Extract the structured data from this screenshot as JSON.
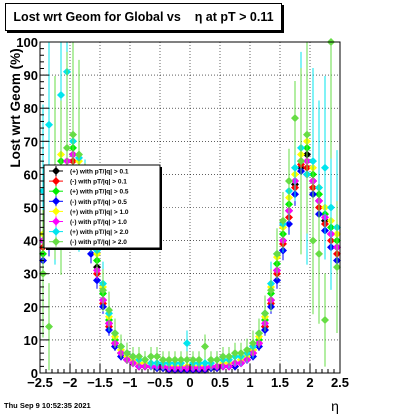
{
  "chart_data": {
    "type": "scatter",
    "title": "Lost wrt Geom for Global vs    η at pT > 0.11",
    "xlabel": "η",
    "ylabel": "Lost wrt Geom (%)",
    "xlim": [
      -2.5,
      2.5
    ],
    "ylim": [
      0,
      100
    ],
    "x_ticks": [
      -2.5,
      -2,
      -1.5,
      -1,
      -0.5,
      0,
      0.5,
      1,
      1.5,
      2,
      2.5
    ],
    "x_tick_labels": [
      "−2.5",
      "−2",
      "−1.5",
      "−1",
      "−0.5",
      "0",
      "0.5",
      "1",
      "1.5",
      "2",
      "2.5"
    ],
    "y_ticks": [
      0,
      10,
      20,
      30,
      40,
      50,
      60,
      70,
      80,
      90,
      100
    ],
    "y_tick_labels": [
      "0",
      "10",
      "20",
      "30",
      "40",
      "50",
      "60",
      "70",
      "80",
      "90",
      "100"
    ],
    "grid": true,
    "legend_placement": "center-left",
    "series": [
      {
        "name": "(+) with pT/|q| > 0.1",
        "color": "#000000",
        "x": [
          -2.45,
          -2.35,
          -2.25,
          -2.15,
          -2.05,
          -1.95,
          -1.85,
          -1.75,
          -1.65,
          -1.55,
          -1.45,
          -1.35,
          -1.25,
          -1.15,
          -1.05,
          -0.95,
          -0.85,
          -0.75,
          -0.65,
          -0.55,
          -0.45,
          -0.35,
          -0.25,
          -0.15,
          -0.05,
          0.05,
          0.15,
          0.25,
          0.35,
          0.45,
          0.55,
          0.65,
          0.75,
          0.85,
          0.95,
          1.05,
          1.15,
          1.25,
          1.35,
          1.45,
          1.55,
          1.65,
          1.75,
          1.85,
          1.95,
          2.05,
          2.15,
          2.25,
          2.35,
          2.45
        ],
        "y": [
          40,
          48,
          55,
          62,
          58,
          66,
          60,
          48,
          40,
          32,
          22,
          15,
          9,
          6,
          4,
          3,
          2,
          2,
          2,
          1.5,
          1.5,
          1,
          1,
          1,
          1,
          1,
          1,
          1,
          1.5,
          1.5,
          2,
          2,
          2,
          3,
          4,
          6,
          9,
          14,
          22,
          31,
          40,
          49,
          57,
          62,
          66,
          58,
          52,
          46,
          42,
          38
        ]
      },
      {
        "name": "(-) with pT/|q| > 0.1",
        "color": "#ff0000",
        "x": [
          -2.45,
          -2.35,
          -2.25,
          -2.15,
          -2.05,
          -1.95,
          -1.85,
          -1.75,
          -1.65,
          -1.55,
          -1.45,
          -1.35,
          -1.25,
          -1.15,
          -1.05,
          -0.95,
          -0.85,
          -0.75,
          -0.65,
          -0.55,
          -0.45,
          -0.35,
          -0.25,
          -0.15,
          -0.05,
          0.05,
          0.15,
          0.25,
          0.35,
          0.45,
          0.55,
          0.65,
          0.75,
          0.85,
          0.95,
          1.05,
          1.15,
          1.25,
          1.35,
          1.45,
          1.55,
          1.65,
          1.75,
          1.85,
          1.95,
          2.05,
          2.15,
          2.25,
          2.35,
          2.45
        ],
        "y": [
          38,
          46,
          52,
          60,
          62,
          64,
          58,
          46,
          38,
          30,
          21,
          14,
          9,
          6,
          4,
          3,
          2,
          2,
          2,
          1.5,
          1.5,
          1,
          1,
          1,
          1,
          1,
          1,
          1,
          1.5,
          1.5,
          2,
          2,
          2,
          3,
          4,
          6,
          9,
          14,
          21,
          30,
          39,
          47,
          56,
          63,
          62,
          56,
          50,
          45,
          40,
          36
        ]
      },
      {
        "name": "(+) with pT/|q| > 0.5",
        "color": "#00ee00",
        "x": [
          -2.45,
          -2.35,
          -2.25,
          -2.15,
          -2.05,
          -1.95,
          -1.85,
          -1.75,
          -1.65,
          -1.55,
          -1.45,
          -1.35,
          -1.25,
          -1.15,
          -1.05,
          -0.95,
          -0.85,
          -0.75,
          -0.65,
          -0.55,
          -0.45,
          -0.35,
          -0.25,
          -0.15,
          -0.05,
          0.05,
          0.15,
          0.25,
          0.35,
          0.45,
          0.55,
          0.65,
          0.75,
          0.85,
          0.95,
          1.05,
          1.15,
          1.25,
          1.35,
          1.45,
          1.55,
          1.65,
          1.75,
          1.85,
          1.95,
          2.05,
          2.15,
          2.25,
          2.35,
          2.45
        ],
        "y": [
          36,
          50,
          58,
          64,
          56,
          68,
          62,
          50,
          42,
          34,
          24,
          16,
          10,
          6,
          4,
          3,
          3,
          2,
          2,
          2,
          2,
          1.5,
          1.5,
          1.5,
          1.5,
          1.5,
          1.5,
          1.5,
          2,
          2,
          2,
          3,
          3,
          4,
          5,
          7,
          10,
          16,
          24,
          33,
          42,
          51,
          58,
          64,
          68,
          60,
          54,
          48,
          44,
          40
        ]
      },
      {
        "name": "(-) with pT/|q| > 0.5",
        "color": "#0000ff",
        "x": [
          -2.45,
          -2.35,
          -2.25,
          -2.15,
          -2.05,
          -1.95,
          -1.85,
          -1.75,
          -1.65,
          -1.55,
          -1.45,
          -1.35,
          -1.25,
          -1.15,
          -1.05,
          -0.95,
          -0.85,
          -0.75,
          -0.65,
          -0.55,
          -0.45,
          -0.35,
          -0.25,
          -0.15,
          -0.05,
          0.05,
          0.15,
          0.25,
          0.35,
          0.45,
          0.55,
          0.65,
          0.75,
          0.85,
          0.95,
          1.05,
          1.15,
          1.25,
          1.35,
          1.45,
          1.55,
          1.65,
          1.75,
          1.85,
          1.95,
          2.05,
          2.15,
          2.25,
          2.35,
          2.45
        ],
        "y": [
          34,
          44,
          50,
          58,
          60,
          62,
          56,
          44,
          36,
          28,
          20,
          13,
          8,
          5,
          4,
          3,
          2,
          2,
          2,
          1.5,
          1.5,
          1,
          1,
          1,
          1,
          1,
          1,
          1,
          1.5,
          1.5,
          2,
          2,
          2,
          3,
          4,
          5,
          8,
          13,
          20,
          28,
          37,
          45,
          54,
          61,
          60,
          54,
          48,
          43,
          38,
          34
        ]
      },
      {
        "name": "(+) with pT/|q| > 1.0",
        "color": "#ffff00",
        "x": [
          -2.45,
          -2.35,
          -2.25,
          -2.15,
          -2.05,
          -1.95,
          -1.85,
          -1.75,
          -1.65,
          -1.55,
          -1.45,
          -1.35,
          -1.25,
          -1.15,
          -1.05,
          -0.95,
          -0.85,
          -0.75,
          -0.65,
          -0.55,
          -0.45,
          -0.35,
          -0.25,
          -0.15,
          -0.05,
          0.05,
          0.15,
          0.25,
          0.35,
          0.45,
          0.55,
          0.65,
          0.75,
          0.85,
          0.95,
          1.05,
          1.15,
          1.25,
          1.35,
          1.45,
          1.55,
          1.65,
          1.75,
          1.85,
          1.95,
          2.05,
          2.15,
          2.25,
          2.35,
          2.45
        ],
        "y": [
          42,
          52,
          60,
          66,
          54,
          70,
          64,
          52,
          44,
          36,
          26,
          17,
          11,
          7,
          5,
          4,
          3,
          3,
          2,
          2,
          2,
          2,
          2,
          2,
          2,
          2,
          2,
          2,
          2,
          2,
          3,
          3,
          3,
          4,
          5,
          7,
          11,
          17,
          26,
          35,
          44,
          53,
          60,
          66,
          70,
          62,
          56,
          50,
          46,
          42
        ]
      },
      {
        "name": "(-) with pT/|q| > 1.0",
        "color": "#ff00ff",
        "x": [
          -2.45,
          -2.35,
          -2.25,
          -2.15,
          -2.05,
          -1.95,
          -1.85,
          -1.75,
          -1.65,
          -1.55,
          -1.45,
          -1.35,
          -1.25,
          -1.15,
          -1.05,
          -0.95,
          -0.85,
          -0.75,
          -0.65,
          -0.55,
          -0.45,
          -0.35,
          -0.25,
          -0.15,
          -0.05,
          0.05,
          0.15,
          0.25,
          0.35,
          0.45,
          0.55,
          0.65,
          0.75,
          0.85,
          0.95,
          1.05,
          1.15,
          1.25,
          1.35,
          1.45,
          1.55,
          1.65,
          1.75,
          1.85,
          1.95,
          2.05,
          2.15,
          2.25,
          2.35,
          2.45
        ],
        "y": [
          40,
          48,
          54,
          62,
          64,
          66,
          60,
          48,
          40,
          31,
          22,
          15,
          9,
          6,
          4,
          3,
          2,
          2,
          2,
          2,
          2,
          1.5,
          1.5,
          1.5,
          1.5,
          1.5,
          1.5,
          1.5,
          2,
          2,
          2,
          2,
          3,
          3,
          4,
          6,
          9,
          15,
          22,
          31,
          40,
          49,
          58,
          64,
          64,
          58,
          52,
          47,
          42,
          38
        ]
      },
      {
        "name": "(+) with pT/|q| > 2.0",
        "color": "#00e5ee",
        "x": [
          -2.45,
          -2.35,
          -2.25,
          -2.15,
          -2.05,
          -1.95,
          -1.85,
          -1.75,
          -1.65,
          -1.55,
          -1.45,
          -1.35,
          -1.25,
          -1.15,
          -1.05,
          -0.95,
          -0.85,
          -0.75,
          -0.65,
          -0.55,
          -0.45,
          -0.35,
          -0.25,
          -0.15,
          -0.05,
          0.05,
          0.15,
          0.25,
          0.35,
          0.45,
          0.55,
          0.65,
          0.75,
          0.85,
          0.95,
          1.05,
          1.15,
          1.25,
          1.35,
          1.45,
          1.55,
          1.65,
          1.75,
          1.85,
          1.95,
          2.05,
          2.15,
          2.25,
          2.35,
          2.45
        ],
        "y": [
          55,
          75,
          60,
          84,
          91,
          70,
          65,
          55,
          45,
          37,
          27,
          18,
          12,
          8,
          6,
          5,
          4,
          4,
          3,
          3,
          3,
          3,
          3,
          3,
          9,
          3,
          3,
          3,
          3,
          4,
          4,
          4,
          5,
          5,
          6,
          8,
          12,
          18,
          27,
          36,
          45,
          55,
          62,
          68,
          60,
          64,
          56,
          62,
          50,
          44
        ]
      },
      {
        "name": "(-) with pT/|q| > 2.0",
        "color": "#66dd44",
        "x": [
          -2.45,
          -2.35,
          -2.25,
          -2.15,
          -2.05,
          -1.95,
          -1.85,
          -1.75,
          -1.65,
          -1.55,
          -1.45,
          -1.35,
          -1.25,
          -1.15,
          -1.05,
          -0.95,
          -0.85,
          -0.75,
          -0.65,
          -0.55,
          -0.45,
          -0.35,
          -0.25,
          -0.15,
          -0.05,
          0.05,
          0.15,
          0.25,
          0.35,
          0.45,
          0.55,
          0.65,
          0.75,
          0.85,
          0.95,
          1.05,
          1.15,
          1.25,
          1.35,
          1.45,
          1.55,
          1.65,
          1.75,
          1.85,
          1.95,
          2.05,
          2.15,
          2.25,
          2.35,
          2.45
        ],
        "y": [
          30,
          14,
          62,
          56,
          68,
          72,
          66,
          54,
          46,
          38,
          25,
          19,
          12,
          8,
          6,
          5,
          5,
          4,
          5,
          5,
          4,
          4,
          4,
          4,
          4,
          4,
          4,
          8,
          4,
          4,
          5,
          5,
          6,
          6,
          7,
          9,
          12,
          18,
          25,
          36,
          46,
          58,
          77,
          64,
          72,
          40,
          36,
          16,
          100,
          32
        ]
      }
    ]
  },
  "page": {
    "title": "Lost wrt Geom for Global vs    η at pT > 0.11",
    "timestamp": "Thu Sep  9 10:52:35 2021"
  }
}
